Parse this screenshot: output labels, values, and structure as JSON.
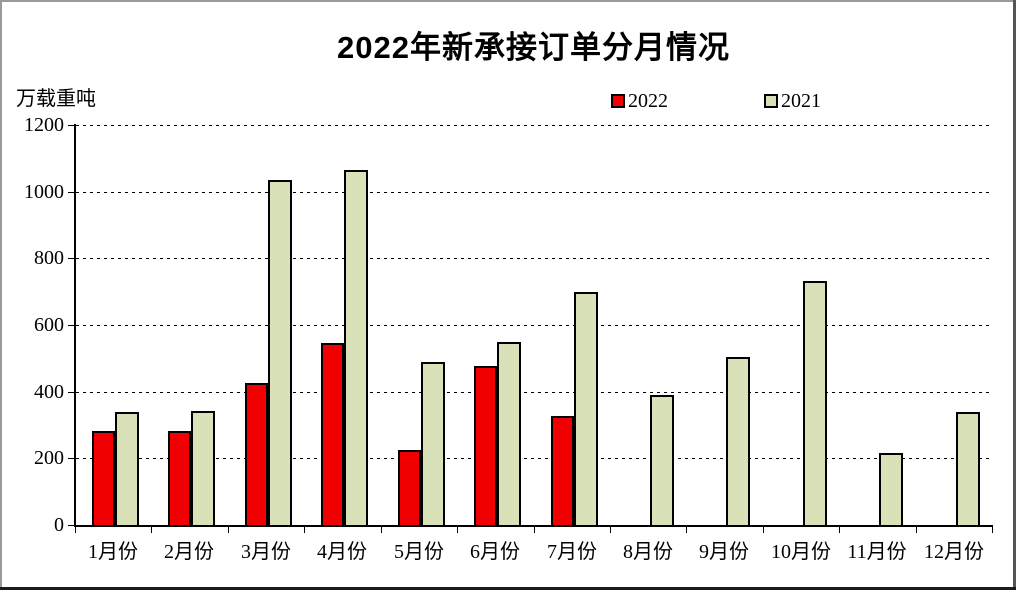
{
  "title": "2022年新承接订单分月情况",
  "unit_label": "万载重吨",
  "legend": {
    "items": [
      {
        "label": "2022",
        "color": "#f00000"
      },
      {
        "label": "2021",
        "color": "#d9e1b8"
      }
    ]
  },
  "chart_data": {
    "type": "bar",
    "title": "2022年新承接订单分月情况",
    "ylabel": "万载重吨",
    "xlabel": "",
    "ylim": [
      0,
      1200
    ],
    "ytick_interval": 200,
    "grid": "horizontal-dashed",
    "legend_position": "top",
    "categories": [
      "1月份",
      "2月份",
      "3月份",
      "4月份",
      "5月份",
      "6月份",
      "7月份",
      "8月份",
      "9月份",
      "10月份",
      "11月份",
      "12月份"
    ],
    "series": [
      {
        "name": "2022",
        "color": "#f00000",
        "values": [
          282,
          281,
          427,
          546,
          226,
          476,
          326,
          null,
          null,
          null,
          null,
          null
        ]
      },
      {
        "name": "2021",
        "color": "#d9e1b8",
        "values": [
          339,
          343,
          1035,
          1066,
          488,
          549,
          698,
          390,
          504,
          731,
          215,
          340
        ]
      }
    ]
  }
}
